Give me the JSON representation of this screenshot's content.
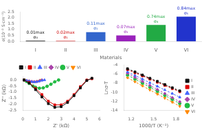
{
  "chart_data": [
    {
      "type": "line",
      "xlabel": "Z' (kΩ)",
      "ylabel": "Z'' (kΩ)",
      "xlim": [
        0,
        6
      ],
      "ylim": [
        -2.5,
        0.3
      ],
      "xticks": [
        0,
        1,
        2,
        3,
        4,
        5,
        6
      ],
      "yticks": [
        -2.5,
        {
          "value": -2,
          "label": "-2.0"
        },
        -1.5,
        {
          "value": -1,
          "label": "-1.0"
        },
        -0.5,
        {
          "value": 0,
          "label": "0.0"
        }
      ],
      "grid": false,
      "legend": "top",
      "line_style": "solid",
      "series": [
        {
          "name": "I",
          "color": "#111111",
          "marker": "square",
          "x": [
            0.1,
            0.5,
            1.0,
            1.5,
            2.0,
            2.5,
            3.0,
            3.5,
            4.0,
            4.5,
            5.0,
            5.4
          ],
          "values": [
            0.0,
            -0.25,
            -0.8,
            -1.4,
            -1.95,
            -2.25,
            -2.2,
            -1.85,
            -1.3,
            -0.65,
            -0.05,
            0.15
          ]
        },
        {
          "name": "II",
          "color": "#dd0000",
          "marker": "square",
          "x": [
            0.1,
            0.5,
            1.0,
            1.5,
            2.0,
            2.5,
            3.0,
            3.5,
            4.0,
            4.5,
            5.0,
            5.4
          ],
          "values": [
            0.0,
            -0.2,
            -0.7,
            -1.2,
            -1.75,
            -2.05,
            -2.05,
            -1.75,
            -1.2,
            -0.55,
            0.0,
            0.1
          ]
        },
        {
          "name": "III",
          "color": "#4466ff",
          "marker": "triangle_up",
          "x": [
            0.1,
            0.3,
            0.5,
            0.7,
            0.9,
            1.1,
            1.3,
            1.5,
            1.7
          ],
          "values": [
            0.0,
            -0.05,
            -0.1,
            -0.15,
            -0.17,
            -0.15,
            -0.1,
            -0.04,
            0.0
          ]
        },
        {
          "name": "IV",
          "color": "#aa44aa",
          "marker": "diamond",
          "x": [
            0.1,
            0.3,
            0.5,
            0.7,
            0.9,
            1.1,
            1.3,
            1.5
          ],
          "values": [
            0.0,
            -0.04,
            -0.08,
            -0.12,
            -0.14,
            -0.12,
            -0.07,
            0.0
          ]
        },
        {
          "name": "V",
          "color": "#22bb44",
          "marker": "circle",
          "x": [
            0.1,
            0.3,
            0.5,
            0.8,
            1.0,
            1.3,
            1.6,
            1.9,
            2.2,
            2.5,
            2.8
          ],
          "values": [
            0.0,
            -0.12,
            -0.28,
            -0.5,
            -0.6,
            -0.68,
            -0.65,
            -0.52,
            -0.35,
            -0.15,
            0.0
          ]
        },
        {
          "name": "VI",
          "color": "#ff8800",
          "marker": "triangle_down",
          "x": [
            0.1,
            0.2,
            0.4,
            0.6,
            0.8,
            1.0,
            1.2,
            1.4
          ],
          "values": [
            0.0,
            -0.03,
            -0.08,
            -0.13,
            -0.16,
            -0.15,
            -0.1,
            0.0
          ]
        }
      ]
    },
    {
      "type": "bar",
      "xlabel": "Materials",
      "ylabel": "σ(10⁻² S·cm⁻¹)",
      "categories": [
        "I",
        "II",
        "III",
        "IV",
        "V",
        "VI"
      ],
      "values": [
        0.05,
        0.04,
        0.78,
        0.5,
        1.38,
        2.08
      ],
      "colors": [
        "#111111",
        "#cc0000",
        "#3366cc",
        "#9922bb",
        "#22aa44",
        "#2233cc"
      ],
      "annotations": [
        "σ₀\n0.01max",
        "σ₁\n0.02max",
        "σ₂\n0.11max",
        "σ₃\n0.07max",
        "σ₄\n0.74max",
        "σ₅\n0.84max"
      ],
      "ylim": [
        0,
        2.5
      ],
      "yticks": [
        {
          "value": 0,
          "label": "0.0"
        },
        0.5,
        {
          "value": 1,
          "label": "1.0"
        },
        1.5,
        {
          "value": 2,
          "label": "2.0"
        },
        2.5
      ],
      "grid": false
    },
    {
      "type": "line",
      "xlabel": "1000/T (K⁻¹)",
      "ylabel": "Lnσ·T",
      "xlim": [
        1.1,
        1.9
      ],
      "ylim": [
        -14,
        -4
      ],
      "xticks": [
        1.2,
        1.5,
        1.8
      ],
      "yticks": [
        -14,
        -12,
        -10,
        -8,
        -6,
        -4
      ],
      "grid": false,
      "legend": "right",
      "line_style": "dashed",
      "series": [
        {
          "name": "I",
          "color": "#111111",
          "marker": "square",
          "x": [
            1.15,
            1.25,
            1.35,
            1.45,
            1.55,
            1.65,
            1.75,
            1.85
          ],
          "values": [
            -4.8,
            -5.5,
            -6.2,
            -6.9,
            -7.6,
            -8.3,
            -9.0,
            -9.7
          ]
        },
        {
          "name": "II",
          "color": "#dd0000",
          "marker": "square",
          "x": [
            1.15,
            1.25,
            1.35,
            1.45,
            1.55,
            1.65,
            1.75,
            1.85
          ],
          "values": [
            -5.0,
            -5.7,
            -6.4,
            -7.1,
            -7.8,
            -8.5,
            -9.2,
            -9.9
          ]
        },
        {
          "name": "III",
          "color": "#4466ff",
          "marker": "triangle_up",
          "x": [
            1.15,
            1.25,
            1.35,
            1.45,
            1.55,
            1.65,
            1.75,
            1.85
          ],
          "values": [
            -5.5,
            -6.3,
            -7.1,
            -7.9,
            -8.7,
            -9.5,
            -10.3,
            -11.1
          ]
        },
        {
          "name": "IV",
          "color": "#aa44aa",
          "marker": "diamond",
          "x": [
            1.15,
            1.25,
            1.35,
            1.45,
            1.55,
            1.65,
            1.75,
            1.85
          ],
          "values": [
            -5.8,
            -6.7,
            -7.6,
            -8.5,
            -9.4,
            -10.3,
            -11.2,
            -12.1
          ]
        },
        {
          "name": "V",
          "color": "#22bb44",
          "marker": "circle",
          "x": [
            1.15,
            1.25,
            1.35,
            1.45,
            1.55,
            1.65,
            1.75,
            1.85
          ],
          "values": [
            -6.2,
            -7.1,
            -8.0,
            -8.9,
            -9.8,
            -10.7,
            -11.6,
            -12.5
          ]
        },
        {
          "name": "VI",
          "color": "#ff8800",
          "marker": "triangle_down",
          "x": [
            1.15,
            1.25,
            1.35,
            1.45,
            1.55,
            1.65,
            1.75,
            1.85
          ],
          "values": [
            -6.8,
            -7.7,
            -8.6,
            -9.5,
            -10.4,
            -11.3,
            -12.2,
            -13.1
          ]
        }
      ]
    }
  ]
}
